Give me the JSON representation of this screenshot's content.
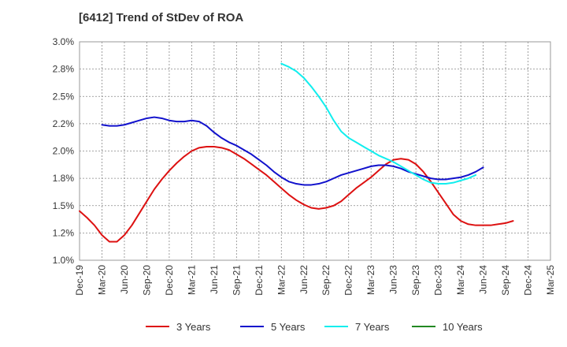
{
  "title": "[6412]  Trend of StDev of ROA",
  "chart_data": {
    "type": "line",
    "title": "[6412]  Trend of StDev of ROA",
    "xlabel": "",
    "ylabel": "",
    "ylim": [
      1.0,
      3.0
    ],
    "y_ticks": [
      1.0,
      1.25,
      1.5,
      1.75,
      2.0,
      2.25,
      2.5,
      2.75,
      3.0
    ],
    "y_tick_labels": [
      "1.0%",
      "1.2%",
      "1.5%",
      "1.8%",
      "2.0%",
      "2.2%",
      "2.5%",
      "2.8%",
      "3.0%"
    ],
    "x_tick_labels": [
      "Dec-19",
      "Mar-20",
      "Jun-20",
      "Sep-20",
      "Dec-20",
      "Mar-21",
      "Jun-21",
      "Sep-21",
      "Dec-21",
      "Mar-22",
      "Jun-22",
      "Sep-22",
      "Dec-22",
      "Mar-23",
      "Jun-23",
      "Sep-23",
      "Dec-23",
      "Mar-24",
      "Jun-24",
      "Sep-24",
      "Dec-24",
      "Mar-25"
    ],
    "grid": true,
    "legend_position": "bottom",
    "series": [
      {
        "name": "3 Years",
        "color": "#dd1111",
        "start": "Dec-19",
        "values": [
          1.45,
          1.39,
          1.32,
          1.23,
          1.17,
          1.17,
          1.23,
          1.32,
          1.43,
          1.54,
          1.65,
          1.74,
          1.82,
          1.89,
          1.95,
          2.0,
          2.03,
          2.04,
          2.04,
          2.03,
          2.01,
          1.97,
          1.93,
          1.88,
          1.83,
          1.78,
          1.72,
          1.66,
          1.6,
          1.55,
          1.51,
          1.48,
          1.47,
          1.48,
          1.5,
          1.54,
          1.6,
          1.66,
          1.71,
          1.76,
          1.82,
          1.88,
          1.92,
          1.93,
          1.92,
          1.88,
          1.81,
          1.72,
          1.62,
          1.52,
          1.42,
          1.36,
          1.33,
          1.32,
          1.32,
          1.32,
          1.33,
          1.34,
          1.36
        ]
      },
      {
        "name": "5 Years",
        "color": "#1111cc",
        "start": "Mar-20",
        "values": [
          2.24,
          2.23,
          2.23,
          2.24,
          2.26,
          2.28,
          2.3,
          2.31,
          2.3,
          2.28,
          2.27,
          2.27,
          2.28,
          2.27,
          2.23,
          2.17,
          2.12,
          2.08,
          2.05,
          2.01,
          1.97,
          1.92,
          1.87,
          1.81,
          1.76,
          1.72,
          1.7,
          1.69,
          1.69,
          1.7,
          1.72,
          1.75,
          1.78,
          1.8,
          1.82,
          1.84,
          1.86,
          1.87,
          1.87,
          1.86,
          1.84,
          1.81,
          1.79,
          1.77,
          1.75,
          1.74,
          1.74,
          1.75,
          1.76,
          1.78,
          1.81,
          1.85
        ]
      },
      {
        "name": "7 Years",
        "color": "#11eeee",
        "start": "Mar-22",
        "values": [
          2.8,
          2.77,
          2.73,
          2.67,
          2.59,
          2.5,
          2.4,
          2.28,
          2.18,
          2.12,
          2.08,
          2.04,
          2.0,
          1.96,
          1.93,
          1.9,
          1.86,
          1.82,
          1.78,
          1.74,
          1.71,
          1.7,
          1.7,
          1.71,
          1.73,
          1.75,
          1.78
        ]
      },
      {
        "name": "10 Years",
        "color": "#228822",
        "start": "Dec-24",
        "values": []
      }
    ]
  }
}
